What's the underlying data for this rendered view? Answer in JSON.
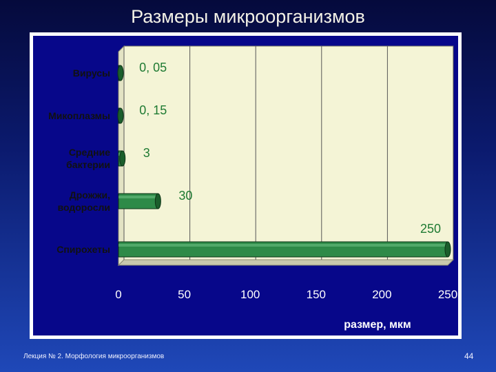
{
  "slide": {
    "title": "Размеры микроорганизмов",
    "footer_left": "Лекция № 2. Морфология микроорганизмов",
    "page_number": "44"
  },
  "chart_data": {
    "type": "bar",
    "orientation": "horizontal",
    "categories": [
      [
        "Вирусы"
      ],
      [
        "Микоплазмы"
      ],
      [
        "Средние",
        "бактерии"
      ],
      [
        "Дрожжи,",
        "водоросли"
      ],
      [
        "Спирохеты"
      ]
    ],
    "values": [
      0.05,
      0.15,
      3,
      30,
      250
    ],
    "data_labels": [
      "0, 05",
      "0, 15",
      "3",
      "30",
      "250"
    ],
    "xlabel": "размер, мкм",
    "xlim": [
      0,
      250
    ],
    "xticks": [
      0,
      50,
      100,
      150,
      200,
      250
    ],
    "grid": true,
    "legend": "none",
    "colors": {
      "bar": "#2e8a48",
      "bar_dark": "#1b5e2c",
      "bar_light": "#6fc285",
      "plot_wall": "#f4f4d6",
      "plot_wall_side": "#e3e3c4",
      "background": "#07078a",
      "data_label": "#1e7a32",
      "category_label": "#111111",
      "tick_label": "#ffffff"
    }
  }
}
